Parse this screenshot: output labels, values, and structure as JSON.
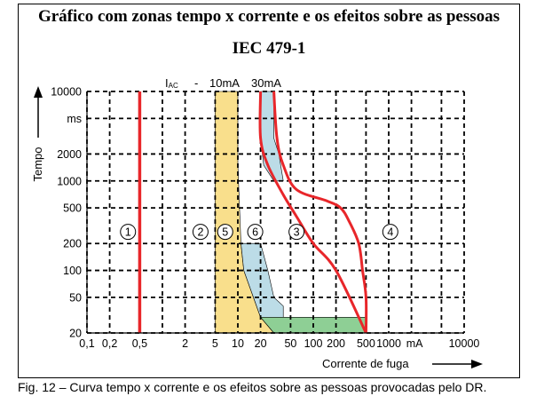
{
  "title": "Gráfico com zonas tempo x corrente e os efeitos sobre as pessoas",
  "subtitle": "IEC 479-1",
  "caption": "Fig. 12 – Curva tempo x corrente e os efeitos sobre as pessoas provocadas pelo DR.",
  "chart_data": {
    "type": "area",
    "x_scale": "log",
    "y_scale": "log",
    "xlabel": "Corrente de fuga",
    "ylabel": "Tempo",
    "x_unit_label": "mA",
    "y_unit_label": "ms",
    "xlim": [
      0.1,
      10000
    ],
    "ylim": [
      20,
      10000
    ],
    "x_ticks": [
      {
        "value": 0.1,
        "label": "0,1"
      },
      {
        "value": 0.2,
        "label": "0,2"
      },
      {
        "value": 0.5,
        "label": "0,5"
      },
      {
        "value": 2,
        "label": "2"
      },
      {
        "value": 5,
        "label": "5"
      },
      {
        "value": 10,
        "label": "10"
      },
      {
        "value": 20,
        "label": "20"
      },
      {
        "value": 50,
        "label": "50"
      },
      {
        "value": 100,
        "label": "100"
      },
      {
        "value": 200,
        "label": "200"
      },
      {
        "value": 500,
        "label": "500"
      },
      {
        "value": 1000,
        "label": "1000"
      },
      {
        "value": 10000,
        "label": "10000"
      }
    ],
    "x_gridlines": [
      0.1,
      0.2,
      0.5,
      1,
      2,
      5,
      10,
      20,
      50,
      100,
      200,
      500,
      1000,
      2000,
      5000,
      10000
    ],
    "y_ticks": [
      {
        "value": 10000,
        "label": "10000"
      },
      {
        "value": 5000,
        "label": "ms"
      },
      {
        "value": 2000,
        "label": "2000"
      },
      {
        "value": 1000,
        "label": "1000"
      },
      {
        "value": 500,
        "label": "500"
      },
      {
        "value": 200,
        "label": "200"
      },
      {
        "value": 100,
        "label": "100"
      },
      {
        "value": 50,
        "label": "50"
      },
      {
        "value": 20,
        "label": "20"
      }
    ],
    "y_gridlines": [
      20,
      50,
      100,
      200,
      500,
      1000,
      2000,
      5000,
      10000
    ],
    "iac_label": {
      "prefix": "I",
      "sub": "AC",
      "dash": "-",
      "values": [
        "10mA",
        "30mA"
      ]
    },
    "threshold_line": {
      "x": 0.5,
      "color": "#e8262a"
    },
    "curves": [
      {
        "name": "c1",
        "points": [
          [
            30,
            10000
          ],
          [
            33,
            3000
          ],
          [
            40,
            1500
          ],
          [
            60,
            800
          ],
          [
            150,
            600
          ],
          [
            230,
            500
          ],
          [
            300,
            350
          ],
          [
            400,
            200
          ],
          [
            450,
            100
          ],
          [
            500,
            50
          ],
          [
            500,
            20
          ]
        ]
      },
      {
        "name": "c2",
        "points": [
          [
            20,
            10000
          ],
          [
            20,
            3000
          ],
          [
            25,
            1500
          ],
          [
            40,
            700
          ],
          [
            60,
            400
          ],
          [
            100,
            200
          ],
          [
            200,
            100
          ],
          [
            500,
            20
          ]
        ]
      }
    ],
    "zones": [
      {
        "id": "5",
        "color": "#f9df8c",
        "points": [
          [
            5,
            10000
          ],
          [
            10,
            10000
          ],
          [
            10,
            1500
          ],
          [
            11,
            200
          ],
          [
            12,
            100
          ],
          [
            20,
            30
          ],
          [
            30,
            20
          ],
          [
            5,
            20
          ]
        ]
      },
      {
        "id": "6",
        "color": "#bcdce7",
        "points": [
          [
            20,
            10000
          ],
          [
            30,
            10000
          ],
          [
            30,
            3000
          ],
          [
            35,
            2000
          ],
          [
            40,
            1000
          ],
          [
            30,
            1000
          ],
          [
            22,
            1500
          ],
          [
            20,
            3000
          ]
        ]
      },
      {
        "id": "6b",
        "color": "#bcdce7",
        "points": [
          [
            11,
            200
          ],
          [
            20,
            200
          ],
          [
            25,
            100
          ],
          [
            30,
            50
          ],
          [
            40,
            40
          ],
          [
            40,
            30
          ],
          [
            20,
            30
          ],
          [
            12,
            100
          ]
        ]
      },
      {
        "id": "green",
        "color": "#8ecf95",
        "points": [
          [
            20,
            30
          ],
          [
            500,
            30
          ],
          [
            500,
            20
          ],
          [
            30,
            20
          ]
        ]
      }
    ],
    "zone_labels": [
      {
        "label": "1",
        "x": 0.35,
        "y": 270
      },
      {
        "label": "2",
        "x": 3.2,
        "y": 270
      },
      {
        "label": "5",
        "x": 6.8,
        "y": 270
      },
      {
        "label": "6",
        "x": 17,
        "y": 270
      },
      {
        "label": "3",
        "x": 60,
        "y": 270
      },
      {
        "label": "4",
        "x": 1050,
        "y": 270
      }
    ],
    "grid": true,
    "axis_arrows": true
  }
}
